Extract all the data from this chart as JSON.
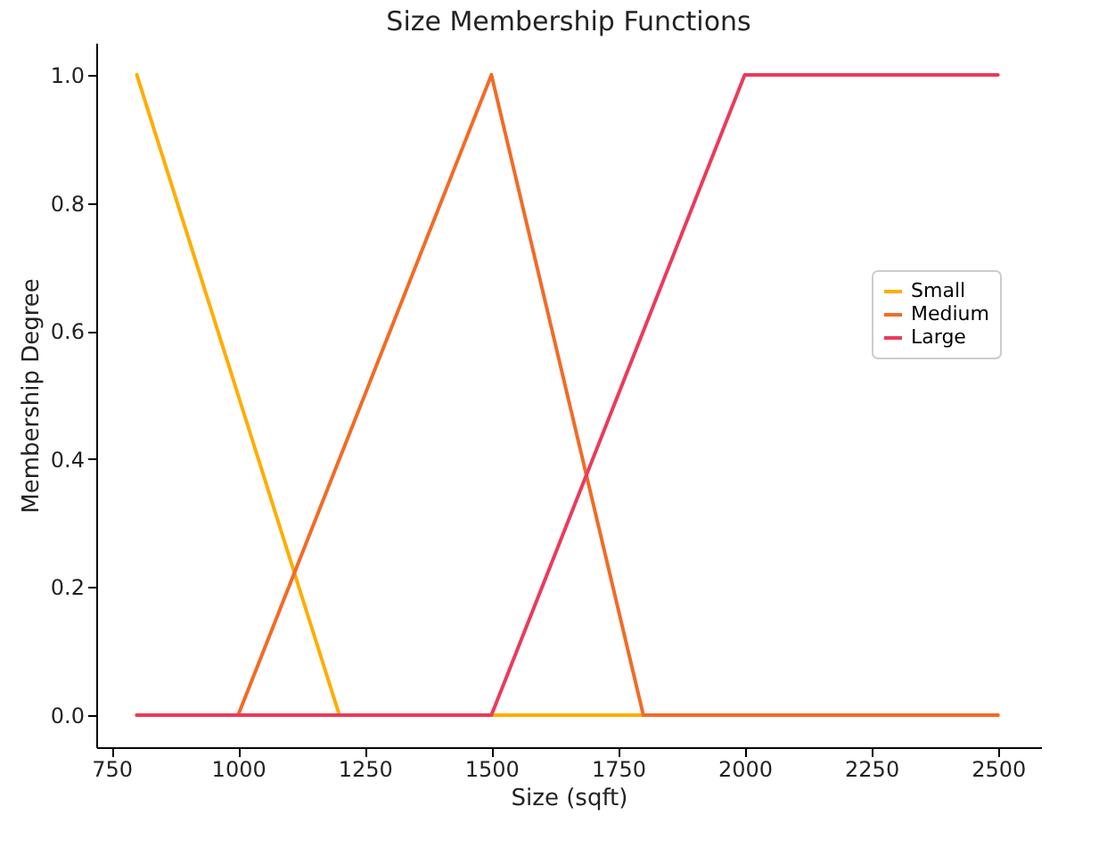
{
  "chart_data": {
    "type": "line",
    "title": "Size Membership Functions",
    "xlabel": "Size (sqft)",
    "ylabel": "Membership Degree",
    "x": [
      800,
      1000,
      1200,
      1500,
      1800,
      2000,
      2500
    ],
    "series": [
      {
        "name": "Small",
        "color": "#ffad00",
        "values": [
          1,
          0.5,
          0,
          0,
          0,
          0,
          0
        ]
      },
      {
        "name": "Medium",
        "color": "#f26b26",
        "values": [
          0,
          0,
          0.4,
          1,
          0,
          0,
          0
        ]
      },
      {
        "name": "Large",
        "color": "#ea3b5b",
        "values": [
          0,
          0,
          0,
          0,
          0.6,
          1,
          1
        ]
      }
    ],
    "xlim": [
      720,
      2585
    ],
    "xticks": [
      750,
      1000,
      1250,
      1500,
      1750,
      2000,
      2250,
      2500
    ],
    "ylim": [
      -0.05,
      1.05
    ],
    "yticks": [
      {
        "value": 0,
        "label": "0.0"
      },
      0.2,
      0.4,
      0.6,
      0.8,
      {
        "value": 1,
        "label": "1.0"
      }
    ],
    "grid": false,
    "legend": "right"
  }
}
